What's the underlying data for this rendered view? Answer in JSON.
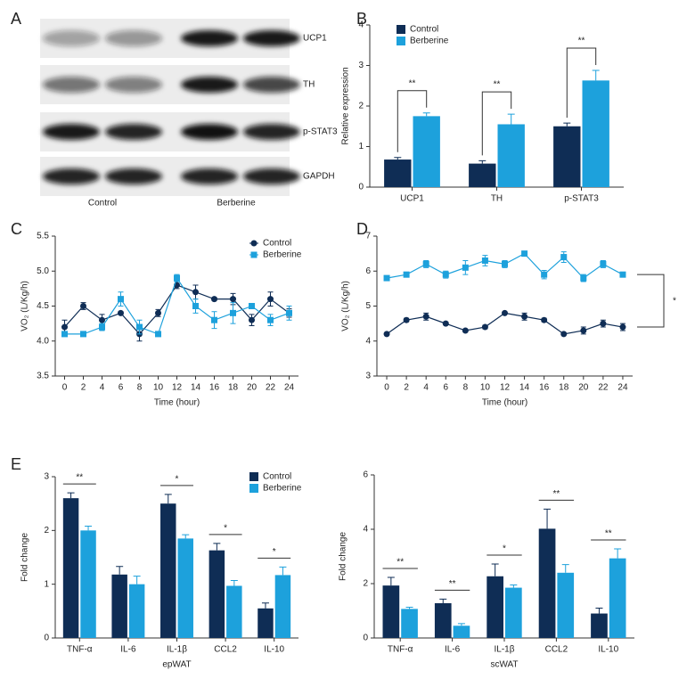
{
  "chart_data": [
    {
      "type": "blot",
      "panel": "A",
      "rows": [
        "UCP1",
        "TH",
        "p-STAT3",
        "GAPDH"
      ],
      "groups": [
        "Control",
        "Berberine"
      ]
    },
    {
      "type": "bar",
      "panel": "B",
      "ylabel": "Relative expression",
      "categories": [
        "UCP1",
        "TH",
        "p-STAT3"
      ],
      "series": [
        {
          "name": "Control",
          "color": "#0f2d55",
          "values": [
            0.68,
            0.58,
            1.5
          ],
          "errors": [
            0.05,
            0.07,
            0.08
          ]
        },
        {
          "name": "Berberine",
          "color": "#1da1dc",
          "values": [
            1.75,
            1.55,
            2.63
          ],
          "errors": [
            0.08,
            0.25,
            0.25
          ]
        }
      ],
      "significance": [
        "**",
        "**",
        "**"
      ],
      "ylim": [
        0,
        4
      ],
      "yticks": [
        0,
        1,
        2,
        3,
        4
      ],
      "legend": "upper left"
    },
    {
      "type": "line",
      "panel": "C",
      "xlabel": "Time (hour)",
      "ylabel": "VO₂ (L/Kg/h)",
      "x": [
        0,
        2,
        4,
        6,
        8,
        10,
        12,
        14,
        16,
        18,
        20,
        22,
        24
      ],
      "series": [
        {
          "name": "Control",
          "color": "#0f2d55",
          "marker": "circle",
          "values": [
            4.2,
            4.5,
            4.3,
            4.4,
            4.1,
            4.4,
            4.8,
            4.7,
            4.6,
            4.6,
            4.3,
            4.6,
            4.4
          ],
          "errors": [
            0.1,
            0.05,
            0.08,
            0.02,
            0.1,
            0.05,
            0.05,
            0.1,
            0.02,
            0.08,
            0.08,
            0.1,
            0.06
          ]
        },
        {
          "name": "Berberine",
          "color": "#1da1dc",
          "marker": "square",
          "values": [
            4.1,
            4.1,
            4.2,
            4.6,
            4.2,
            4.1,
            4.9,
            4.5,
            4.3,
            4.4,
            4.5,
            4.3,
            4.4
          ],
          "errors": [
            0.03,
            0.02,
            0.05,
            0.1,
            0.1,
            0.02,
            0.05,
            0.1,
            0.12,
            0.15,
            0.03,
            0.08,
            0.1
          ]
        }
      ],
      "xlim": [
        -1,
        25
      ],
      "xticks": [
        0,
        2,
        4,
        6,
        8,
        10,
        12,
        14,
        16,
        18,
        20,
        22,
        24
      ],
      "ylim": [
        3.5,
        5.5
      ],
      "yticks": [
        3.5,
        {
          "value": 4,
          "label": "4.0"
        },
        4.5,
        {
          "value": 5,
          "label": "5.0"
        },
        5.5
      ],
      "legend": "upper right"
    },
    {
      "type": "line",
      "panel": "D",
      "xlabel": "Time (hour)",
      "ylabel": "VO₂ (L/Kg/h)",
      "x": [
        0,
        2,
        4,
        6,
        8,
        10,
        12,
        14,
        16,
        18,
        20,
        22,
        24
      ],
      "series": [
        {
          "name": "Control",
          "color": "#0f2d55",
          "marker": "circle",
          "values": [
            4.2,
            4.6,
            4.7,
            4.5,
            4.3,
            4.4,
            4.8,
            4.7,
            4.6,
            4.2,
            4.3,
            4.5,
            4.4
          ],
          "errors": [
            0.03,
            0.05,
            0.1,
            0.03,
            0.03,
            0.05,
            0.03,
            0.1,
            0.05,
            0.03,
            0.1,
            0.1,
            0.1
          ]
        },
        {
          "name": "Berberine",
          "color": "#1da1dc",
          "marker": "square",
          "values": [
            5.8,
            5.9,
            6.2,
            5.9,
            6.1,
            6.3,
            6.2,
            6.5,
            5.9,
            6.4,
            5.8,
            6.2,
            5.9
          ],
          "errors": [
            0.05,
            0.05,
            0.1,
            0.1,
            0.2,
            0.15,
            0.1,
            0.05,
            0.12,
            0.15,
            0.1,
            0.1,
            0.05
          ]
        }
      ],
      "xlim": [
        -1,
        25
      ],
      "xticks": [
        0,
        2,
        4,
        6,
        8,
        10,
        12,
        14,
        16,
        18,
        20,
        22,
        24
      ],
      "ylim": [
        3,
        7
      ],
      "yticks": [
        3,
        4,
        5,
        6,
        7
      ],
      "annotation": "*"
    },
    {
      "type": "bar",
      "panel": "E",
      "xlabel": "epWAT",
      "ylabel": "Fold change",
      "categories": [
        "TNF-α",
        "IL-6",
        "IL-1β",
        "CCL2",
        "IL-10"
      ],
      "series": [
        {
          "name": "Control",
          "color": "#0f2d55",
          "values": [
            2.6,
            1.18,
            2.5,
            1.63,
            0.55
          ],
          "errors": [
            0.1,
            0.15,
            0.17,
            0.13,
            0.1
          ]
        },
        {
          "name": "Berberine",
          "color": "#1da1dc",
          "values": [
            2.0,
            1.0,
            1.85,
            0.97,
            1.17
          ],
          "errors": [
            0.08,
            0.15,
            0.07,
            0.1,
            0.15
          ]
        }
      ],
      "significance": [
        "**",
        null,
        "*",
        "*",
        "*"
      ],
      "ylim": [
        0,
        3
      ],
      "yticks": [
        0,
        1,
        2,
        3
      ],
      "legend": "upper right"
    },
    {
      "type": "bar",
      "xlabel": "scWAT",
      "ylabel": "Fold change",
      "categories": [
        "TNF-α",
        "IL-6",
        "IL-1β",
        "CCL2",
        "IL-10"
      ],
      "series": [
        {
          "name": "Control",
          "color": "#0f2d55",
          "values": [
            1.93,
            1.28,
            2.27,
            4.02,
            0.9
          ],
          "errors": [
            0.3,
            0.15,
            0.45,
            0.72,
            0.2
          ]
        },
        {
          "name": "Berberine",
          "color": "#1da1dc",
          "values": [
            1.07,
            0.45,
            1.85,
            2.4,
            2.93
          ],
          "errors": [
            0.06,
            0.08,
            0.1,
            0.3,
            0.35
          ]
        }
      ],
      "significance": [
        "**",
        "**",
        "*",
        "**",
        "**"
      ],
      "ylim": [
        0,
        6
      ],
      "yticks": [
        0,
        2,
        4,
        6
      ]
    }
  ]
}
